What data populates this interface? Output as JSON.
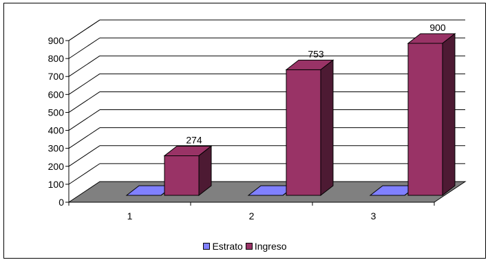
{
  "chart_data": {
    "type": "bar",
    "title": "",
    "xlabel": "",
    "ylabel": "",
    "categories": [
      "1",
      "2",
      "3"
    ],
    "series": [
      {
        "name": "Estrato",
        "values": [
          0,
          0,
          0
        ],
        "color": "#8080ff"
      },
      {
        "name": "Ingreso",
        "values": [
          274,
          753,
          900
        ],
        "color": "#993366"
      }
    ],
    "data_labels": [
      "274",
      "753",
      "900"
    ],
    "ylim": [
      0,
      900
    ],
    "yticks": [
      "0",
      "100",
      "200",
      "300",
      "400",
      "500",
      "600",
      "700",
      "800",
      "900"
    ],
    "grid": true,
    "legend_position": "bottom",
    "floor_color": "#808080"
  }
}
